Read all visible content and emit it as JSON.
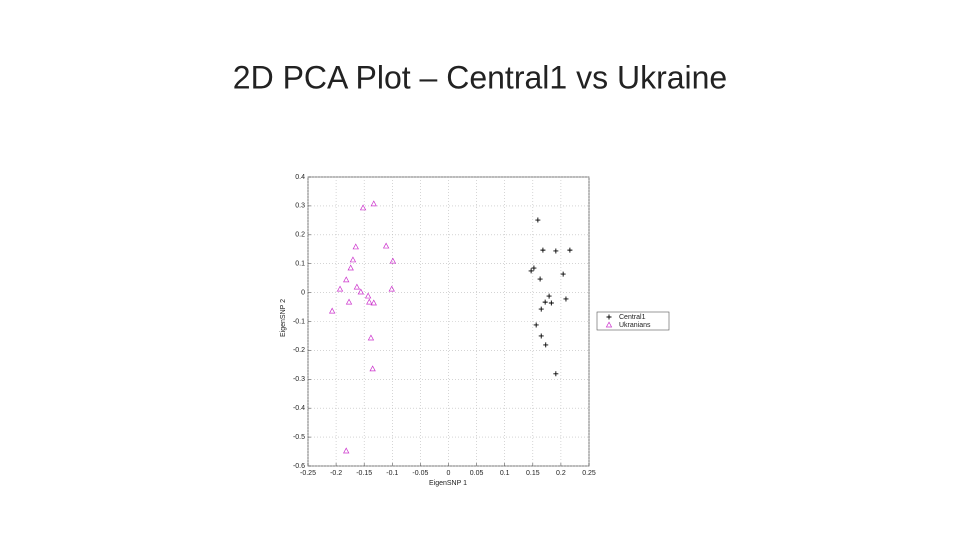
{
  "chart_data": {
    "type": "scatter",
    "title": "2D PCA Plot – Central1 vs Ukraine",
    "x_label": "EigenSNP 1",
    "y_label": "EigenSNP 2",
    "xlim": [
      -0.25,
      0.25
    ],
    "xticks": [
      -0.25,
      -0.2,
      -0.15,
      -0.1,
      -0.05,
      0,
      0.05,
      0.1,
      0.15,
      0.2,
      0.25
    ],
    "ylim": [
      -0.6,
      0.4
    ],
    "yticks": [
      -0.6,
      -0.5,
      -0.4,
      -0.3,
      -0.2,
      -0.1,
      0,
      0.1,
      0.2,
      0.3,
      0.4
    ],
    "grid": true,
    "legend": "outside-right",
    "series": [
      {
        "name": "Central1",
        "color": "#000000",
        "marker": "plus",
        "x": [
          0.159,
          0.168,
          0.191,
          0.216,
          0.152,
          0.147,
          0.204,
          0.163,
          0.179,
          0.209,
          0.172,
          0.183,
          0.165,
          0.156,
          0.165,
          0.173,
          0.191
        ],
        "values": [
          0.251,
          0.147,
          0.144,
          0.147,
          0.085,
          0.075,
          0.064,
          0.047,
          -0.012,
          -0.022,
          -0.033,
          -0.036,
          -0.057,
          -0.112,
          -0.15,
          -0.181,
          -0.281
        ]
      },
      {
        "name": "Ukranians",
        "color": "#cc33cc",
        "marker": "triangle",
        "x": [
          -0.133,
          -0.152,
          -0.165,
          -0.111,
          -0.17,
          -0.099,
          -0.174,
          -0.182,
          -0.193,
          -0.163,
          -0.156,
          -0.143,
          -0.177,
          -0.141,
          -0.133,
          -0.101,
          -0.207,
          -0.138,
          -0.135,
          -0.182
        ],
        "values": [
          0.307,
          0.293,
          0.158,
          0.161,
          0.113,
          0.109,
          0.085,
          0.044,
          0.012,
          0.019,
          0.002,
          -0.012,
          -0.033,
          -0.033,
          -0.036,
          0.012,
          -0.064,
          -0.157,
          -0.264,
          -0.548
        ]
      }
    ]
  }
}
